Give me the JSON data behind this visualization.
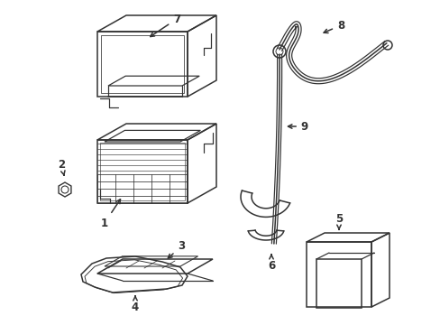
{
  "background_color": "#ffffff",
  "line_color": "#333333",
  "line_width": 1.1,
  "figsize": [
    4.89,
    3.6
  ],
  "dpi": 100
}
